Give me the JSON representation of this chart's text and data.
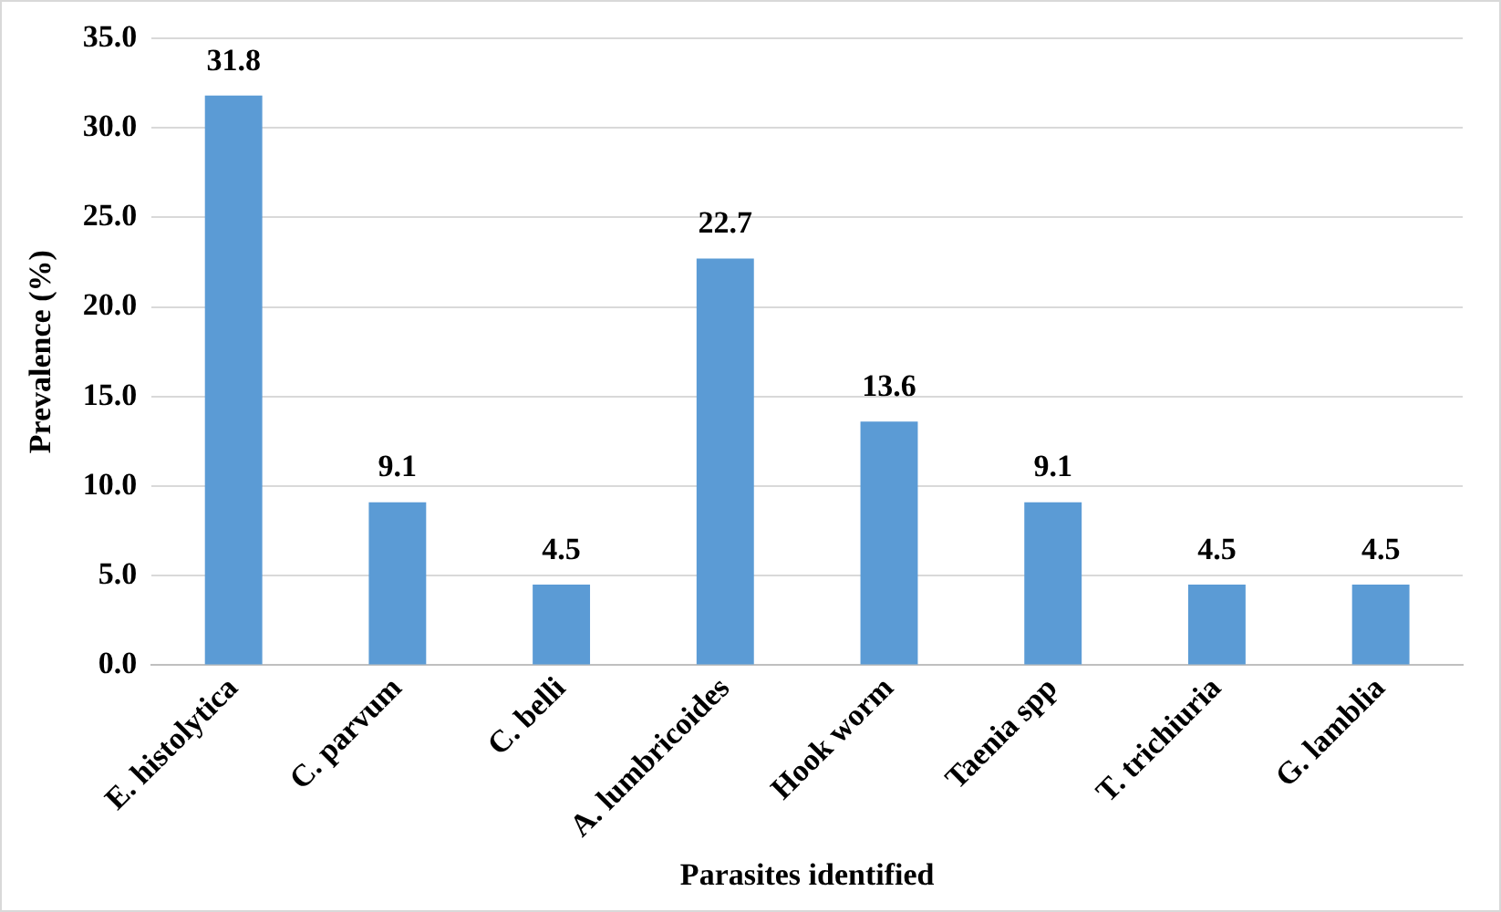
{
  "chart_data": {
    "type": "bar",
    "xlabel": "Parasites identified",
    "ylabel": "Prevalence (%)",
    "categories": [
      "E. histolytica",
      "C. parvum",
      "C. belli",
      "A. lumbricoides",
      "Hook worm",
      "Taenia spp",
      "T. trichiuria",
      "G. lamblia"
    ],
    "values": [
      31.8,
      9.1,
      4.5,
      22.7,
      13.6,
      9.1,
      4.5,
      4.5
    ],
    "color": "#5b9bd5",
    "ylim": [
      0,
      35
    ],
    "yticks": [
      {
        "value": 0,
        "label": "0.0"
      },
      {
        "value": 5,
        "label": "5.0"
      },
      {
        "value": 10,
        "label": "10.0"
      },
      {
        "value": 15,
        "label": "15.0"
      },
      {
        "value": 20,
        "label": "20.0"
      },
      {
        "value": 25,
        "label": "25.0"
      },
      {
        "value": 30,
        "label": "30.0"
      },
      {
        "value": 35,
        "label": "35.0"
      }
    ],
    "grid": "y",
    "data_labels": true
  }
}
